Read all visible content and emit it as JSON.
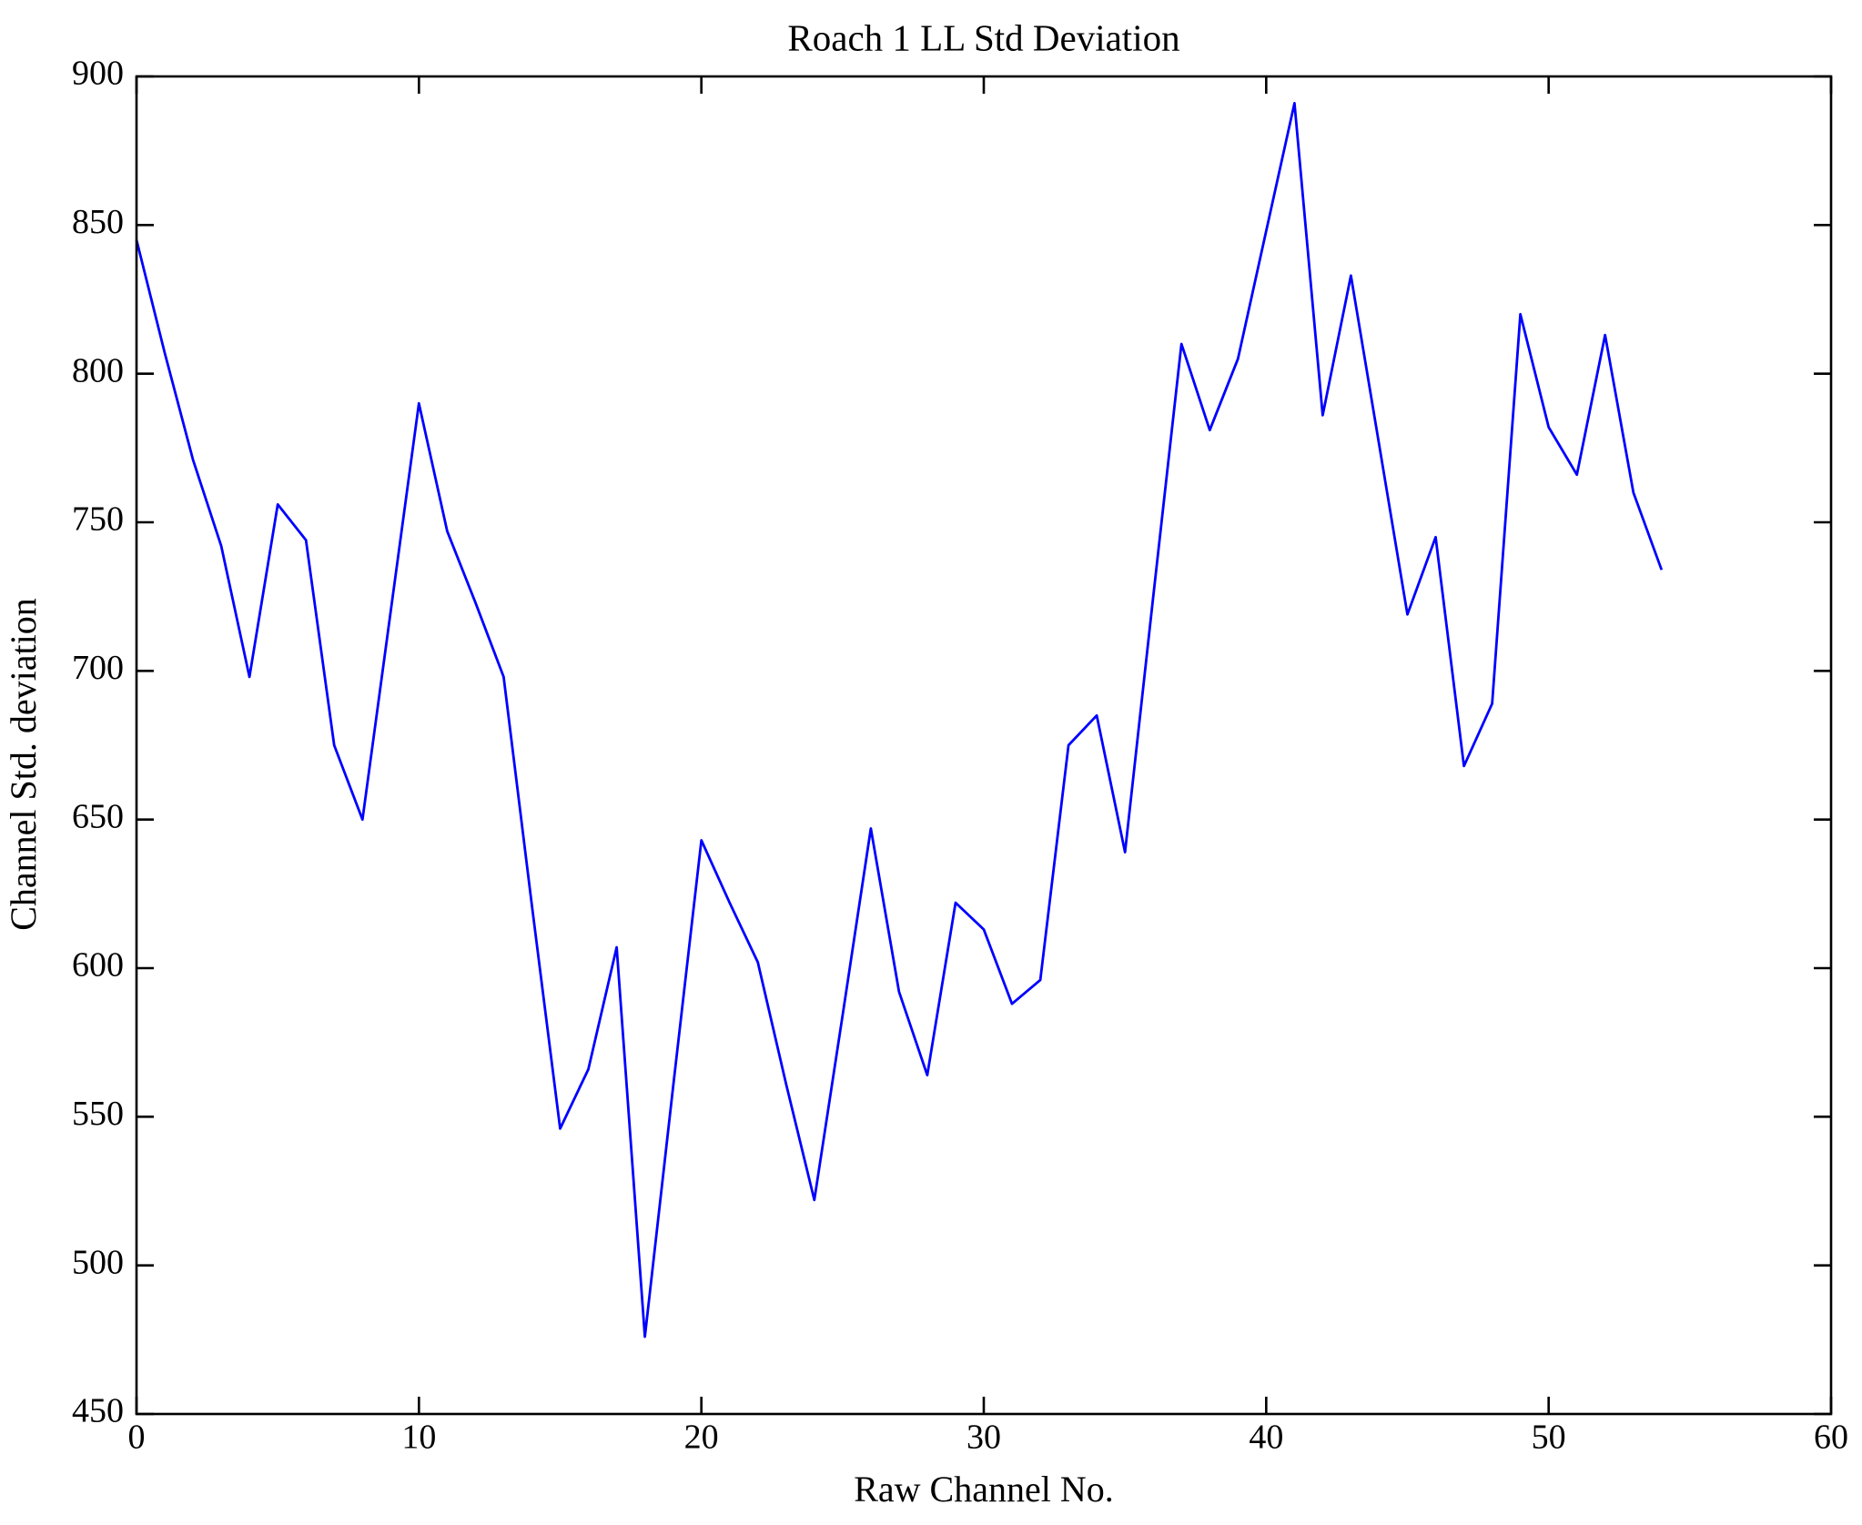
{
  "chart_data": {
    "type": "line",
    "title": "Roach 1 LL Std Deviation",
    "xlabel": "Raw Channel No.",
    "ylabel": "Channel Std. deviation",
    "xlim": [
      0,
      60
    ],
    "ylim": [
      450,
      900
    ],
    "x_ticks": [
      0,
      10,
      20,
      30,
      40,
      50,
      60
    ],
    "y_ticks": [
      450,
      500,
      550,
      600,
      650,
      700,
      750,
      800,
      850,
      900
    ],
    "grid": false,
    "legend": "none",
    "marker": "none",
    "line_color": "#0000ff",
    "axis_color": "#000000",
    "background_color": "#ffffff",
    "tick_style": "inward-mirrored",
    "x": [
      0,
      1,
      2,
      3,
      4,
      5,
      6,
      7,
      8,
      9,
      10,
      11,
      12,
      13,
      14,
      15,
      16,
      17,
      18,
      19,
      20,
      21,
      22,
      23,
      24,
      25,
      26,
      27,
      28,
      29,
      30,
      31,
      32,
      33,
      34,
      35,
      36,
      37,
      38,
      39,
      40,
      41,
      42,
      43,
      44,
      45,
      46,
      47,
      48,
      49,
      50,
      51,
      52,
      53,
      54
    ],
    "values": [
      845,
      807,
      771,
      742,
      698,
      756,
      744,
      675,
      650,
      720,
      790,
      747,
      723,
      698,
      621,
      546,
      566,
      607,
      476,
      560,
      643,
      622,
      602,
      561,
      522,
      584,
      647,
      592,
      564,
      622,
      613,
      588,
      596,
      675,
      685,
      639,
      725,
      810,
      781,
      805,
      848,
      891,
      786,
      833,
      776,
      719,
      745,
      668,
      689,
      820,
      782,
      766,
      813,
      760,
      734
    ]
  }
}
